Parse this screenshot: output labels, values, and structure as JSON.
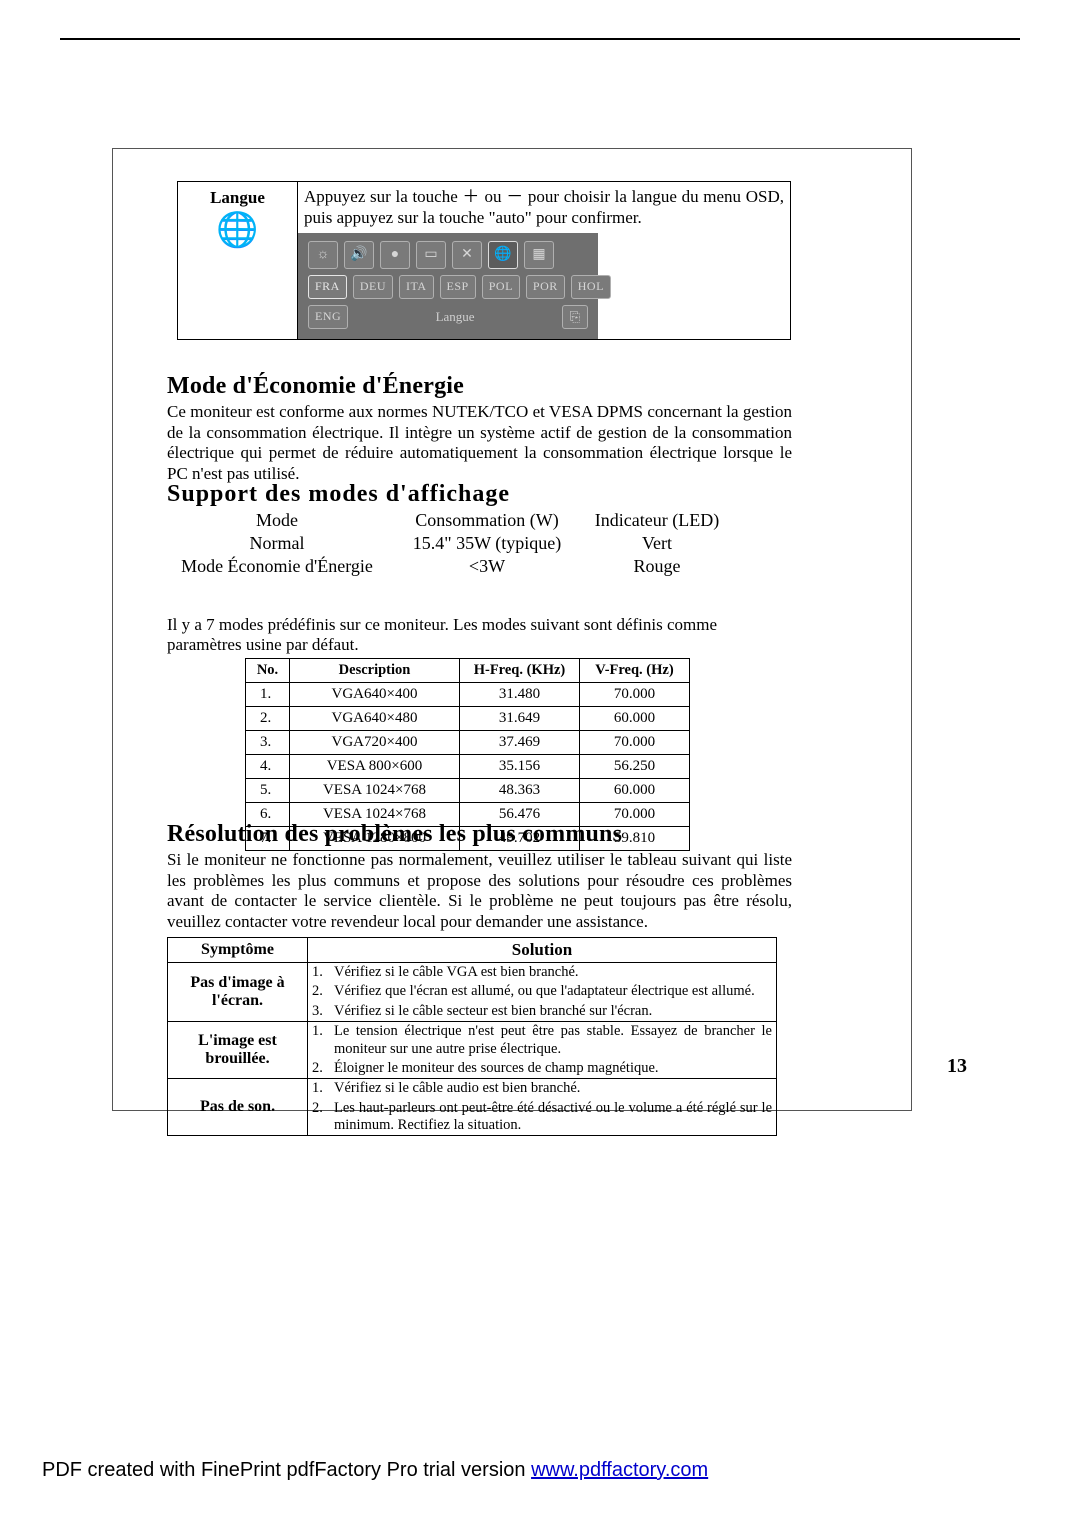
{
  "page_number": "13",
  "footer": {
    "prefix": "PDF created with FinePrint pdfFactory Pro trial version ",
    "link": "www.pdffactory.com"
  },
  "langue": {
    "label": "Langue",
    "instruction": "Appuyez sur la touche ＋ ou － pour choisir la langue du menu OSD, puis appuyez sur la touche \"auto\" pour confirmer.",
    "osd_title": "Langue",
    "osd_icons_row1": [
      "☼",
      "🔊",
      "●",
      "▭",
      "✕",
      "🌐",
      "▦"
    ],
    "osd_langs_row": [
      "FRA",
      "DEU",
      "ITA",
      "ESP",
      "POL",
      "POR",
      "HOL"
    ],
    "osd_langs_row2": [
      "ENG"
    ]
  },
  "energy": {
    "title": "Mode d'Économie d'Énergie",
    "para": "Ce moniteur est conforme aux normes NUTEK/TCO et VESA DPMS concernant la gestion de la consommation électrique. Il intègre un système actif de gestion de la consommation électrique qui permet de réduire automatiquement la consommation électrique lorsque le PC n'est pas utilisé."
  },
  "support": {
    "title": "Support des modes d'affichage",
    "headers": [
      "Mode",
      "Consommation (W)",
      "Indicateur (LED)"
    ],
    "rows": [
      [
        "Normal",
        "15.4\" 35W (typique)",
        "Vert"
      ],
      [
        "Mode Économie d'Énergie",
        "<3W",
        "Rouge"
      ]
    ],
    "preset_intro": "Il y a 7 modes prédéfinis sur ce moniteur. Les modes suivant sont définis comme paramètres usine par défaut.",
    "preset_headers": [
      "No.",
      "Description",
      "H-Freq. (KHz)",
      "V-Freq. (Hz)"
    ],
    "preset_rows": [
      [
        "1.",
        "VGA640×400",
        "31.480",
        "70.000"
      ],
      [
        "2.",
        "VGA640×480",
        "31.649",
        "60.000"
      ],
      [
        "3.",
        "VGA720×400",
        "37.469",
        "70.000"
      ],
      [
        "4.",
        "VESA 800×600",
        "35.156",
        "56.250"
      ],
      [
        "5.",
        "VESA 1024×768",
        "48.363",
        "60.000"
      ],
      [
        "6.",
        "VESA 1024×768",
        "56.476",
        "70.000"
      ],
      [
        "7.",
        "VESA 1280×800",
        "49.702",
        "59.810"
      ]
    ]
  },
  "trouble": {
    "title": "Résolution des problèmes les plus communs",
    "para": "Si le moniteur ne fonctionne pas normalement, veuillez utiliser le tableau suivant qui liste les problèmes les plus communs et propose des solutions pour résoudre ces problèmes avant de contacter le service clientèle. Si le problème ne peut toujours pas être résolu, veuillez contacter votre revendeur local pour demander une assistance.",
    "headers": [
      "Symptôme",
      "Solution"
    ],
    "rows": [
      {
        "symptom": "Pas d'image à l'écran.",
        "solutions": [
          [
            "1.",
            "Vérifiez si le câble VGA est bien branché."
          ],
          [
            "2.",
            "Vérifiez que l'écran est allumé, ou que l'adaptateur électrique est allumé."
          ],
          [
            "3.",
            "Vérifiez si le câble secteur est bien branché sur l'écran."
          ]
        ]
      },
      {
        "symptom": "L'image est brouillée.",
        "solutions": [
          [
            "1.",
            "Le tension électrique n'est peut être pas stable. Essayez de brancher le moniteur sur une autre prise électrique."
          ],
          [
            "2.",
            "Éloigner le moniteur des sources de champ magnétique."
          ]
        ]
      },
      {
        "symptom": "Pas de son.",
        "solutions": [
          [
            "1.",
            "Vérifiez si le câble audio est bien branché."
          ],
          [
            "2.",
            "Les haut-parleurs ont peut-être été désactivé ou le volume a été réglé sur le minimum.  Rectifiez la situation."
          ]
        ]
      }
    ]
  }
}
